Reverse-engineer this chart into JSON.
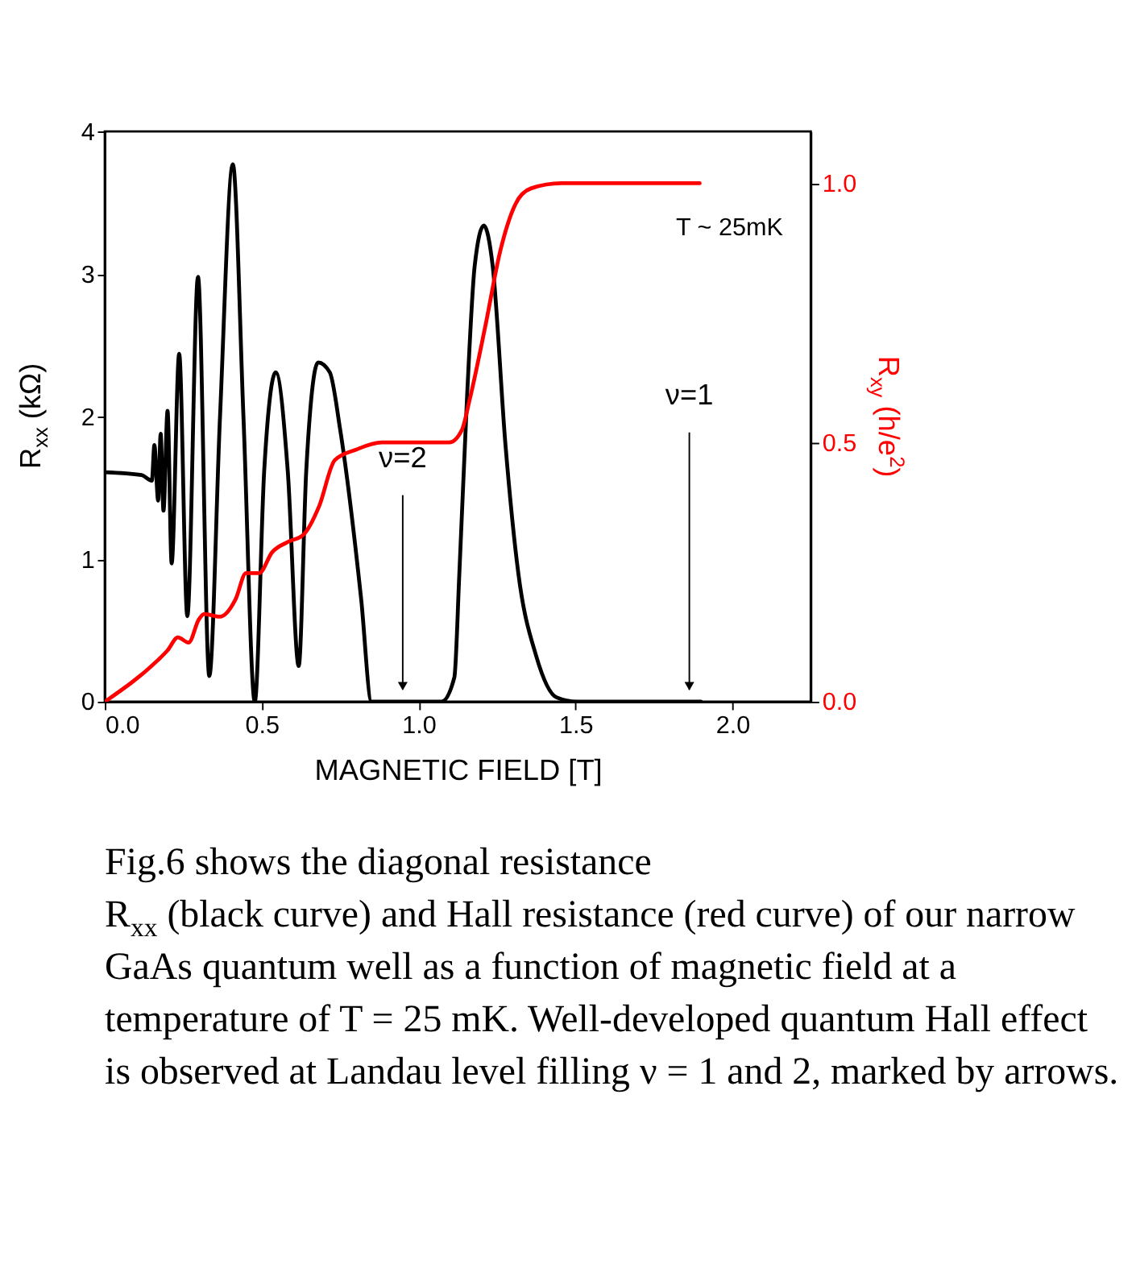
{
  "chart_data": {
    "type": "line",
    "xlabel": "MAGNETIC FIELD [T]",
    "ylabel": "R$_{xx}$ (kΩ)",
    "y2label": "R$_{xy}$ (h/e$^{2}$)",
    "xlim": [
      0,
      2.25
    ],
    "xticks": [
      {
        "value": 0,
        "label": "0.0"
      },
      {
        "value": 0.5,
        "label": "0.5"
      },
      {
        "value": 1,
        "label": "1.0"
      },
      {
        "value": 1.5,
        "label": "1.5"
      },
      {
        "value": 2,
        "label": "2.0"
      }
    ],
    "ylim": [
      0,
      4
    ],
    "yticks": [
      0,
      1,
      2,
      3,
      4
    ],
    "y2lim": [
      0,
      1.1
    ],
    "y2ticks": [
      {
        "value": 0,
        "label": "0.0"
      },
      {
        "value": 0.5,
        "label": "0.5"
      },
      {
        "value": 1,
        "label": "1.0"
      }
    ],
    "grid": false,
    "line_style": "solid",
    "marker": "none",
    "series": [
      {
        "color": "#000000",
        "x": [
          0,
          0.117,
          0.15,
          0.158,
          0.17,
          0.178,
          0.187,
          0.2,
          0.213,
          0.237,
          0.263,
          0.297,
          0.333,
          0.367,
          0.408,
          0.442,
          0.478,
          0.508,
          0.545,
          0.583,
          0.618,
          0.642,
          0.68,
          0.717,
          0.75,
          0.817,
          0.85,
          1.073,
          1.114,
          1.13,
          1.155,
          1.179,
          1.208,
          1.236,
          1.277,
          1.318,
          1.375,
          1.44,
          1.505,
          1.9
        ],
        "values": [
          1.61,
          1.59,
          1.55,
          1.8,
          1.41,
          1.88,
          1.34,
          2.04,
          0.97,
          2.44,
          0.6,
          2.98,
          0.18,
          1.99,
          3.77,
          1.99,
          0,
          1.62,
          2.31,
          1.62,
          0.25,
          1.62,
          2.38,
          2.31,
          1.91,
          0.72,
          0,
          0,
          0.17,
          0.9,
          2.16,
          3.06,
          3.34,
          3.06,
          1.8,
          0.9,
          0.32,
          0.03,
          0,
          0
        ]
      },
      {
        "color": "#ff0000",
        "axis": "y2",
        "x": [
          0,
          0.167,
          0.2,
          0.233,
          0.267,
          0.3,
          0.317,
          0.367,
          0.417,
          0.45,
          0.492,
          0.533,
          0.583,
          0.633,
          0.683,
          0.733,
          0.8,
          0.883,
          1.098,
          1.138,
          1.163,
          1.212,
          1.261,
          1.309,
          1.358,
          1.456,
          1.896
        ],
        "values": [
          0,
          0.079,
          0.099,
          0.124,
          0.114,
          0.159,
          0.169,
          0.164,
          0.198,
          0.248,
          0.248,
          0.288,
          0.308,
          0.322,
          0.377,
          0.466,
          0.486,
          0.5,
          0.5,
          0.524,
          0.583,
          0.722,
          0.871,
          0.96,
          0.99,
          1.0,
          1.0
        ]
      }
    ],
    "annotations": [
      "ν=2",
      "ν=1",
      "T ~ 25mK",
      "Fig.6 shows the diagonal resistance R$_{xx}$ (black curve) and Hall resistance (red curve) of our narrow GaAs quantum well as a function of magnetic field at a temperature of T = 25 mK. Well-developed quantum Hall effect is observed at Landau level filling ν = 1 and 2, marked by arrows."
    ]
  }
}
